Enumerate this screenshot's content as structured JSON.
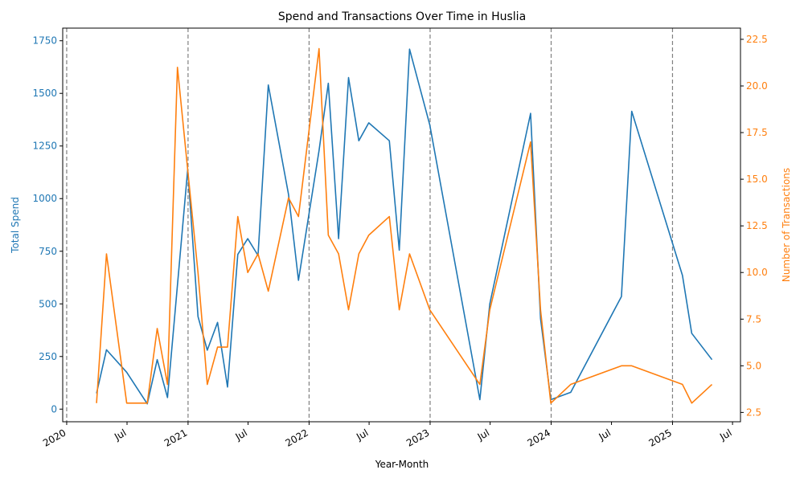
{
  "chart_data": {
    "type": "line",
    "title": "Spend and Transactions Over Time in Huslia",
    "xlabel": "Year-Month",
    "ylabel_left": "Total Spend",
    "ylabel_right": "Number of Transactions",
    "xlim": [
      "2019-12-20",
      "2025-07-25"
    ],
    "ylim_left": [
      -60,
      1810
    ],
    "ylim_right": [
      2,
      23.1
    ],
    "yticks_left": [
      0,
      250,
      500,
      750,
      1000,
      1250,
      1500,
      1750
    ],
    "yticks_right": [
      2.5,
      5.0,
      7.5,
      10.0,
      12.5,
      15.0,
      17.5,
      20.0,
      22.5
    ],
    "x_ticks": [
      {
        "date": "2020-01-01",
        "label": "2020"
      },
      {
        "date": "2020-07-01",
        "label": "Jul"
      },
      {
        "date": "2021-01-01",
        "label": "2021"
      },
      {
        "date": "2021-07-01",
        "label": "Jul"
      },
      {
        "date": "2022-01-01",
        "label": "2022"
      },
      {
        "date": "2022-07-01",
        "label": "Jul"
      },
      {
        "date": "2023-01-01",
        "label": "2023"
      },
      {
        "date": "2023-07-01",
        "label": "Jul"
      },
      {
        "date": "2024-01-01",
        "label": "2024"
      },
      {
        "date": "2024-07-01",
        "label": "Jul"
      },
      {
        "date": "2025-01-01",
        "label": "2025"
      },
      {
        "date": "2025-07-01",
        "label": "Jul"
      }
    ],
    "year_lines": [
      "2020-01-01",
      "2021-01-01",
      "2022-01-01",
      "2023-01-01",
      "2024-01-01",
      "2025-01-01"
    ],
    "grid": false,
    "series": [
      {
        "axis": "left",
        "color": "#1f77b4",
        "points": [
          [
            "2020-03-31",
            75
          ],
          [
            "2020-04-30",
            282
          ],
          [
            "2020-06-30",
            175
          ],
          [
            "2020-08-31",
            25
          ],
          [
            "2020-09-30",
            235
          ],
          [
            "2020-10-31",
            55
          ],
          [
            "2020-12-31",
            1140
          ],
          [
            "2021-01-31",
            440
          ],
          [
            "2021-02-28",
            280
          ],
          [
            "2021-03-31",
            412
          ],
          [
            "2021-04-30",
            105
          ],
          [
            "2021-05-31",
            735
          ],
          [
            "2021-06-30",
            810
          ],
          [
            "2021-07-31",
            730
          ],
          [
            "2021-08-31",
            1540
          ],
          [
            "2021-10-31",
            1020
          ],
          [
            "2021-11-30",
            612
          ],
          [
            "2022-01-31",
            1228
          ],
          [
            "2022-02-28",
            1548
          ],
          [
            "2022-03-31",
            810
          ],
          [
            "2022-04-30",
            1575
          ],
          [
            "2022-05-31",
            1275
          ],
          [
            "2022-06-30",
            1360
          ],
          [
            "2022-08-31",
            1275
          ],
          [
            "2022-09-30",
            755
          ],
          [
            "2022-10-31",
            1710
          ],
          [
            "2022-12-31",
            1350
          ],
          [
            "2023-05-31",
            45
          ],
          [
            "2023-06-30",
            500
          ],
          [
            "2023-10-31",
            1405
          ],
          [
            "2023-11-30",
            430
          ],
          [
            "2023-12-31",
            45
          ],
          [
            "2024-02-29",
            80
          ],
          [
            "2024-07-31",
            535
          ],
          [
            "2024-08-31",
            1415
          ],
          [
            "2025-01-31",
            635
          ],
          [
            "2025-02-28",
            360
          ],
          [
            "2025-04-30",
            235
          ]
        ]
      },
      {
        "axis": "right",
        "color": "#ff7f0e",
        "points": [
          [
            "2020-03-31",
            3
          ],
          [
            "2020-04-30",
            11
          ],
          [
            "2020-06-30",
            3
          ],
          [
            "2020-08-31",
            3
          ],
          [
            "2020-09-30",
            7
          ],
          [
            "2020-10-31",
            4
          ],
          [
            "2020-11-30",
            21
          ],
          [
            "2021-01-31",
            10
          ],
          [
            "2021-02-28",
            4
          ],
          [
            "2021-03-31",
            6
          ],
          [
            "2021-04-30",
            6
          ],
          [
            "2021-05-31",
            13
          ],
          [
            "2021-06-30",
            10
          ],
          [
            "2021-07-31",
            11
          ],
          [
            "2021-08-31",
            9
          ],
          [
            "2021-10-31",
            14
          ],
          [
            "2021-11-30",
            13
          ],
          [
            "2022-01-31",
            22
          ],
          [
            "2022-02-28",
            12
          ],
          [
            "2022-03-31",
            11
          ],
          [
            "2022-04-30",
            8
          ],
          [
            "2022-05-31",
            11
          ],
          [
            "2022-06-30",
            12
          ],
          [
            "2022-08-31",
            13
          ],
          [
            "2022-09-30",
            8
          ],
          [
            "2022-10-31",
            11
          ],
          [
            "2022-12-31",
            8
          ],
          [
            "2023-05-31",
            4
          ],
          [
            "2023-06-30",
            8
          ],
          [
            "2023-10-31",
            17
          ],
          [
            "2023-11-30",
            8
          ],
          [
            "2023-12-31",
            3
          ],
          [
            "2024-02-29",
            4
          ],
          [
            "2024-07-31",
            5
          ],
          [
            "2024-08-31",
            5
          ],
          [
            "2025-01-31",
            4
          ],
          [
            "2025-02-28",
            3
          ],
          [
            "2025-04-30",
            4
          ]
        ]
      }
    ]
  }
}
